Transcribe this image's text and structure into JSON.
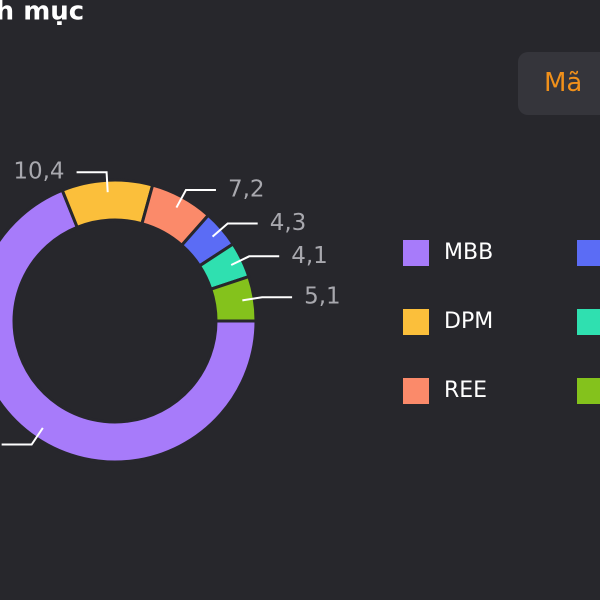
{
  "header": {
    "title": "Danh mục",
    "button": "Mã"
  },
  "chart_data": {
    "type": "pie",
    "categories": [
      "MBB",
      "DPM",
      "REE",
      null,
      null,
      null
    ],
    "values": [
      68.9,
      10.4,
      7.2,
      4.3,
      4.1,
      5.1
    ],
    "value_labels": [
      null,
      "10,4",
      "7,2",
      "4,3",
      "4,1",
      "5,1"
    ],
    "colors": [
      "#a77bfa",
      "#fbbf3b",
      "#fb8a6a",
      "#5b6cf5",
      "#2fe0b0",
      "#84c21c"
    ],
    "donut": true
  }
}
